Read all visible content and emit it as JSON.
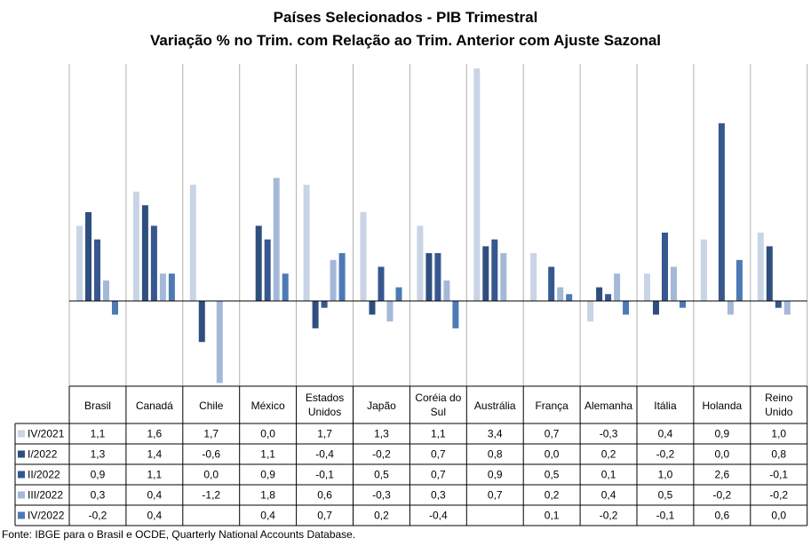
{
  "title": "Países Selecionados - PIB Trimestral",
  "subtitle": "Variação % no Trim. com Relação ao Trim. Anterior com Ajuste Sazonal",
  "source": "Fonte: IBGE para o Brasil e OCDE, Quarterly National Accounts Database.",
  "colors": {
    "IV/2021": "#c9d4e6",
    "I/2022": "#2e4f7e",
    "II/2022": "#36578f",
    "III/2022": "#a4b8d8",
    "IV/2022": "#4d7ab5"
  },
  "chart_data": {
    "type": "bar",
    "title": "Países Selecionados - PIB Trimestral",
    "subtitle": "Variação % no Trim. com Relação ao Trim. Anterior com Ajuste Sazonal",
    "categories": [
      [
        "Brasil"
      ],
      [
        "Canadá"
      ],
      [
        "Chile"
      ],
      [
        "México"
      ],
      [
        "Estados",
        "Unidos"
      ],
      [
        "Japão"
      ],
      [
        "Coréia do",
        "Sul"
      ],
      [
        "Austrália"
      ],
      [
        "França"
      ],
      [
        "Alemanha"
      ],
      [
        "Itália"
      ],
      [
        "Holanda"
      ],
      [
        "Reino",
        "Unido"
      ]
    ],
    "ylim": [
      -1.3,
      3.5
    ],
    "grid": "vertical",
    "legend": "table-left",
    "series": [
      {
        "name": "IV/2021",
        "values": [
          1.1,
          1.6,
          1.7,
          0.0,
          1.7,
          1.3,
          1.1,
          3.4,
          0.7,
          -0.3,
          0.4,
          0.9,
          1.0
        ],
        "labels": [
          "1,1",
          "1,6",
          "1,7",
          "0,0",
          "1,7",
          "1,3",
          "1,1",
          "3,4",
          "0,7",
          "-0,3",
          "0,4",
          "0,9",
          "1,0"
        ]
      },
      {
        "name": "I/2022",
        "values": [
          1.3,
          1.4,
          -0.6,
          1.1,
          -0.4,
          -0.2,
          0.7,
          0.8,
          0.0,
          0.2,
          -0.2,
          0.0,
          0.8
        ],
        "labels": [
          "1,3",
          "1,4",
          "-0,6",
          "1,1",
          "-0,4",
          "-0,2",
          "0,7",
          "0,8",
          "0,0",
          "0,2",
          "-0,2",
          "0,0",
          "0,8"
        ]
      },
      {
        "name": "II/2022",
        "values": [
          0.9,
          1.1,
          0.0,
          0.9,
          -0.1,
          0.5,
          0.7,
          0.9,
          0.5,
          0.1,
          1.0,
          2.6,
          -0.1
        ],
        "labels": [
          "0,9",
          "1,1",
          "0,0",
          "0,9",
          "-0,1",
          "0,5",
          "0,7",
          "0,9",
          "0,5",
          "0,1",
          "1,0",
          "2,6",
          "-0,1"
        ]
      },
      {
        "name": "III/2022",
        "values": [
          0.3,
          0.4,
          -1.2,
          1.8,
          0.6,
          -0.3,
          0.3,
          0.7,
          0.2,
          0.4,
          0.5,
          -0.2,
          -0.2
        ],
        "labels": [
          "0,3",
          "0,4",
          "-1,2",
          "1,8",
          "0,6",
          "-0,3",
          "0,3",
          "0,7",
          "0,2",
          "0,4",
          "0,5",
          "-0,2",
          "-0,2"
        ]
      },
      {
        "name": "IV/2022",
        "values": [
          -0.2,
          0.4,
          null,
          0.4,
          0.7,
          0.2,
          -0.4,
          null,
          0.1,
          -0.2,
          -0.1,
          0.6,
          0.0
        ],
        "labels": [
          "-0,2",
          "0,4",
          "",
          "0,4",
          "0,7",
          "0,2",
          "-0,4",
          "",
          "0,1",
          "-0,2",
          "-0,1",
          "0,6",
          "0,0"
        ]
      }
    ]
  }
}
